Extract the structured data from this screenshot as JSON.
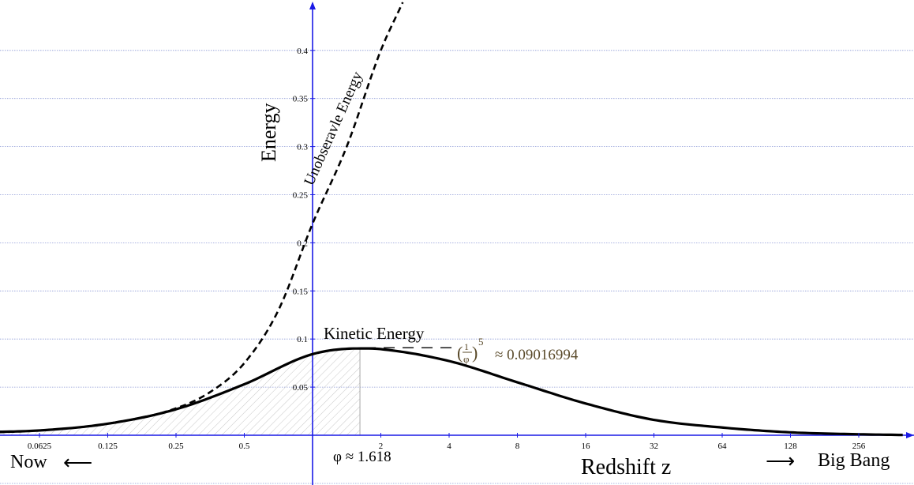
{
  "chart_data": {
    "type": "line",
    "x_scale": "log2",
    "xlim": [
      0.04,
      400
    ],
    "ylim": [
      -0.015,
      0.45
    ],
    "x_ticks": [
      {
        "value": 0.0625,
        "label": "0.0625"
      },
      {
        "value": 0.125,
        "label": "0.125"
      },
      {
        "value": 0.25,
        "label": "0.25"
      },
      {
        "value": 0.5,
        "label": "0.5"
      },
      {
        "value": 2,
        "label": "2"
      },
      {
        "value": 4,
        "label": "4"
      },
      {
        "value": 8,
        "label": "8"
      },
      {
        "value": 16,
        "label": "16"
      },
      {
        "value": 32,
        "label": "32"
      },
      {
        "value": 64,
        "label": "64"
      },
      {
        "value": 128,
        "label": "128"
      },
      {
        "value": 256,
        "label": "256"
      }
    ],
    "y_ticks": [
      {
        "value": 0.05,
        "label": "0.05"
      },
      {
        "value": 0.1,
        "label": "0.1"
      },
      {
        "value": 0.15,
        "label": "0.15"
      },
      {
        "value": 0.2,
        "label": "0.2"
      },
      {
        "value": 0.25,
        "label": "0.25"
      },
      {
        "value": 0.3,
        "label": "0.3"
      },
      {
        "value": 0.35,
        "label": "0.35"
      },
      {
        "value": 0.4,
        "label": "0.4"
      }
    ],
    "grid": "horizontal",
    "series": [
      {
        "name": "Kinetic Energy",
        "style": "solid",
        "color": "#000000",
        "x": [
          0.03,
          0.0625,
          0.125,
          0.25,
          0.5,
          1,
          1.618,
          2,
          4,
          8,
          16,
          32,
          64,
          128,
          256,
          400
        ],
        "y": [
          0.003,
          0.005,
          0.012,
          0.027,
          0.053,
          0.0843,
          0.0902,
          0.0895,
          0.0771,
          0.055,
          0.033,
          0.016,
          0.008,
          0.003,
          0.001,
          0.0003
        ]
      },
      {
        "name": "Unobseravle Energy",
        "style": "dashed",
        "color": "#000000",
        "x": [
          0.03,
          0.0625,
          0.125,
          0.25,
          0.354,
          0.5,
          0.707,
          1,
          1.414,
          2,
          2.5
        ],
        "y": [
          0.002,
          0.005,
          0.012,
          0.028,
          0.045,
          0.075,
          0.13,
          0.22,
          0.3,
          0.4,
          0.45
        ]
      }
    ],
    "shaded_region": {
      "from_x": 0.03,
      "to_x": 1.618,
      "under_series": "Kinetic Energy",
      "pattern": "diagonal-hatch"
    },
    "peak": {
      "x": 1.618,
      "y": 0.09016994
    },
    "labels": {
      "y_axis": "Energy",
      "x_axis": "Redshift z",
      "left_end": "Now",
      "right_end": "Big Bang",
      "arrow_left": "⟵",
      "arrow_right": "⟶",
      "phi": "φ ≈ 1.618",
      "kinetic_label": "Kinetic Energy",
      "unobservable_label": "Unobseravle Energy",
      "formula_open": "(",
      "formula_num": "1",
      "formula_den": "φ",
      "formula_close": ")",
      "formula_exp": "5",
      "formula_value": "≈ 0.09016994"
    }
  }
}
